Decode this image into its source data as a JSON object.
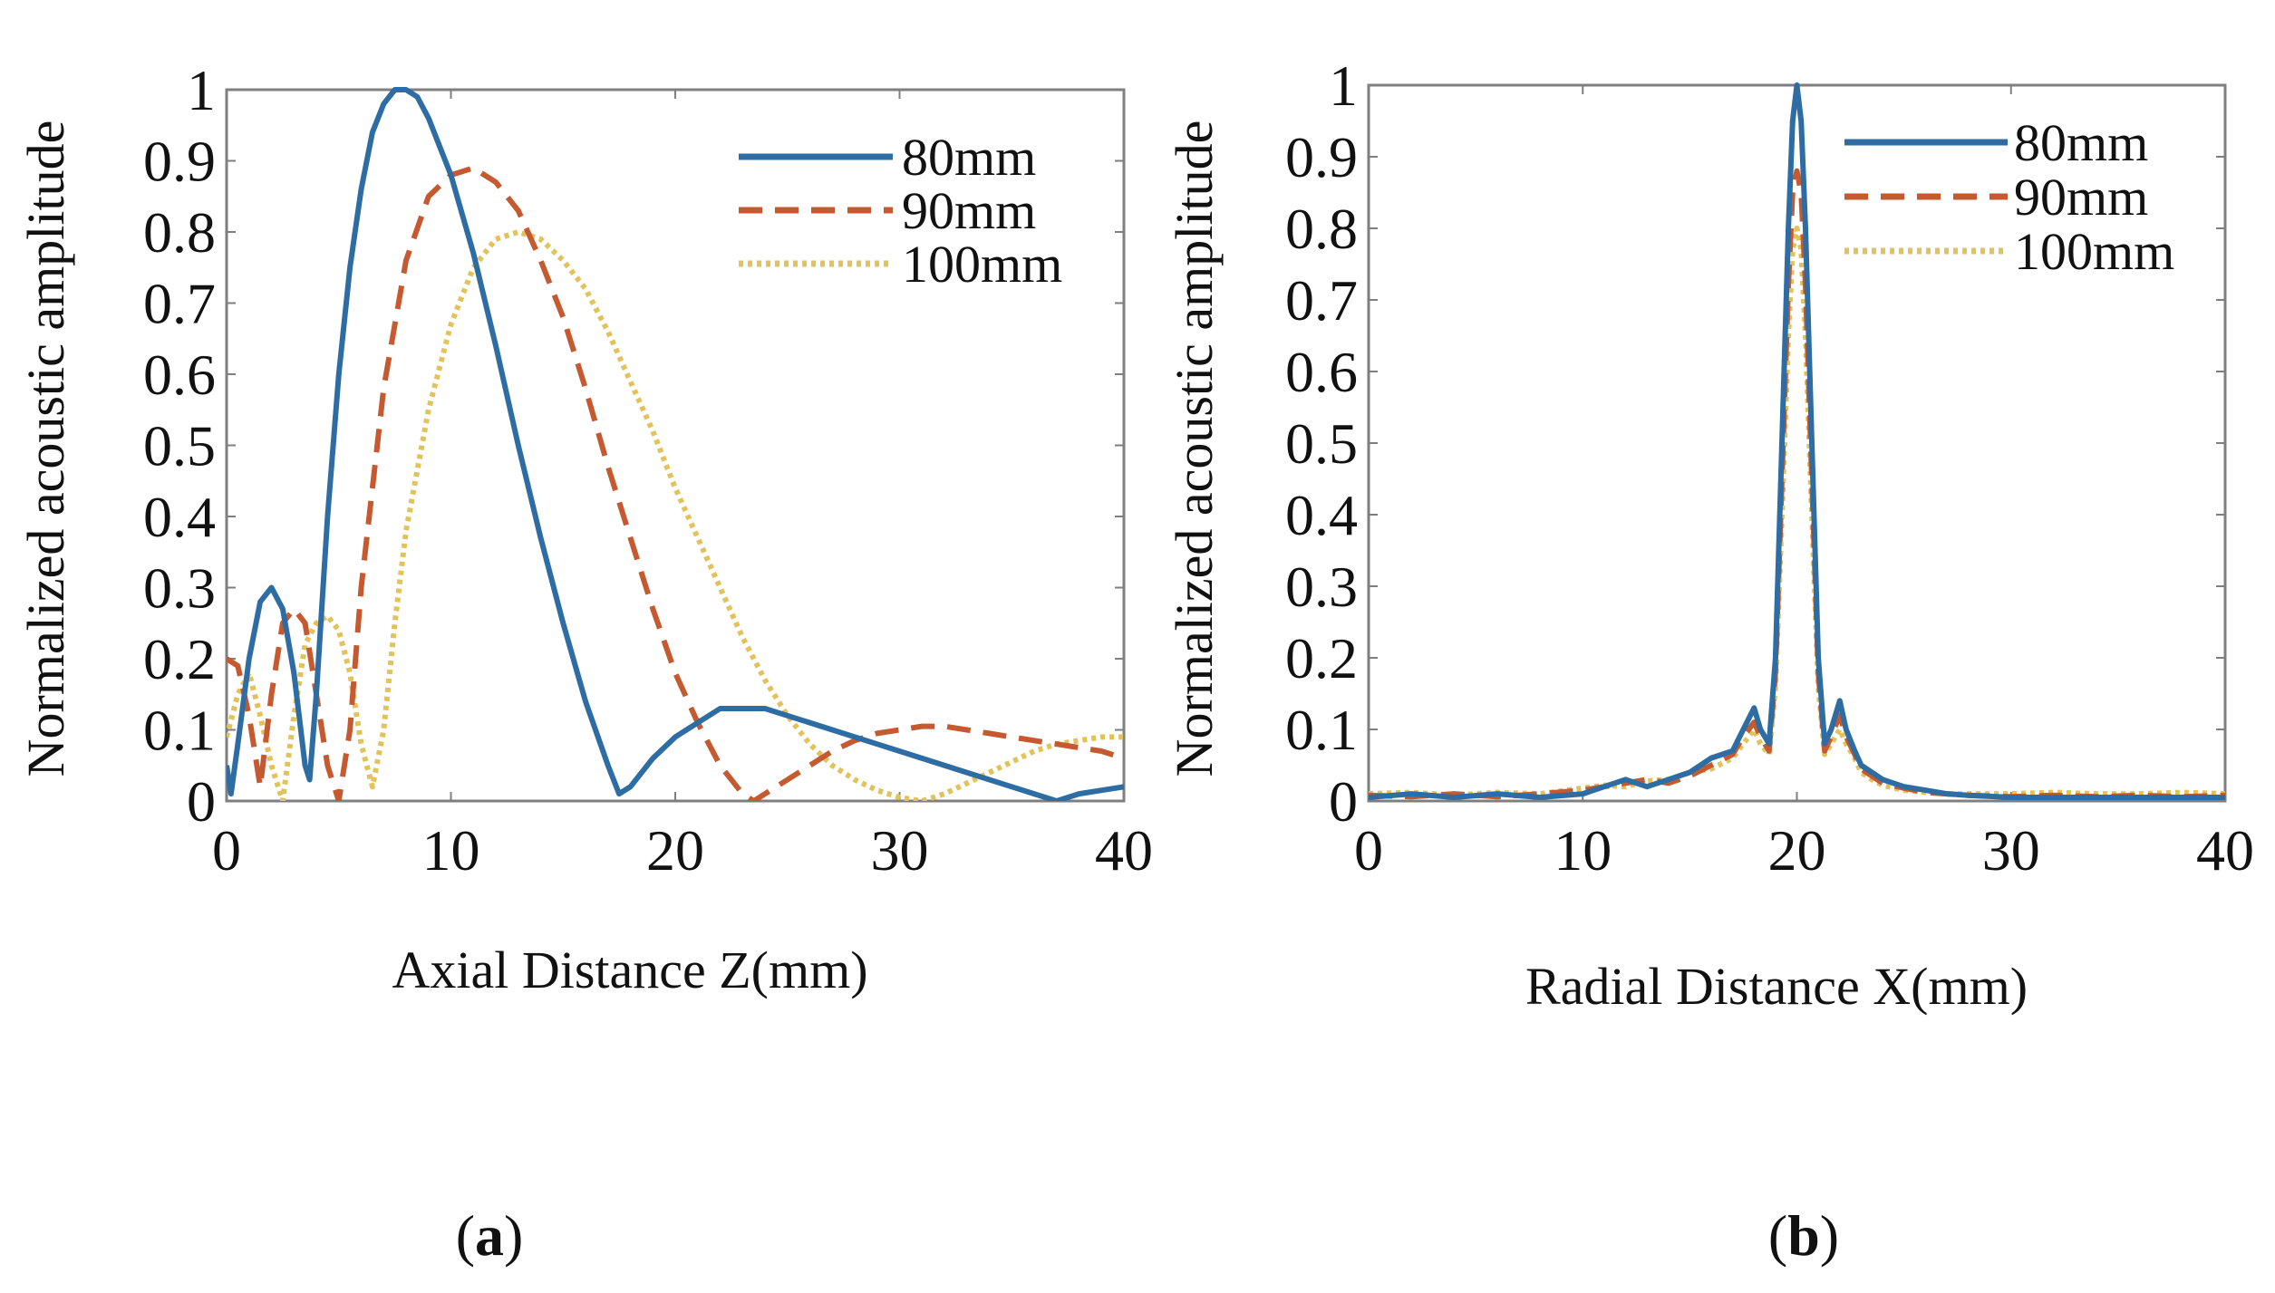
{
  "chart_data": [
    {
      "type": "line",
      "panel": "a",
      "caption": {
        "open": "(",
        "letter": "a",
        "close": ")"
      },
      "xlabel": "Axial Distance Z(mm)",
      "ylabel": "Normalized acoustic amplitude",
      "xlim": [
        0,
        40
      ],
      "ylim": [
        0,
        1
      ],
      "xticks": [
        0,
        10,
        20,
        30,
        40
      ],
      "xtick_labels": [
        "0",
        "10",
        "20",
        "30",
        "40"
      ],
      "yticks": [
        0,
        0.1,
        0.2,
        0.3,
        0.4,
        0.5,
        0.6,
        0.7,
        0.8,
        0.9,
        1
      ],
      "ytick_labels": [
        "0",
        "0.1",
        "0.2",
        "0.3",
        "0.4",
        "0.5",
        "0.6",
        "0.7",
        "0.8",
        "0.9",
        "1"
      ],
      "legend_position": "top-right",
      "series": [
        {
          "name": "80mm",
          "color": "#2e6da4",
          "style": "solid",
          "x": [
            0,
            0.2,
            0.5,
            1,
            1.5,
            2,
            2.5,
            3,
            3.5,
            3.7,
            4,
            4.5,
            5,
            5.5,
            6,
            6.5,
            7,
            7.5,
            8,
            8.5,
            9,
            10,
            11,
            12,
            13,
            14,
            15,
            16,
            17,
            17.5,
            18,
            19,
            20,
            21,
            22,
            23,
            24,
            25,
            27,
            29,
            31,
            33,
            35,
            36,
            37,
            38,
            39,
            40
          ],
          "y": [
            0.05,
            0.01,
            0.08,
            0.2,
            0.28,
            0.3,
            0.27,
            0.18,
            0.05,
            0.03,
            0.15,
            0.4,
            0.6,
            0.75,
            0.86,
            0.94,
            0.98,
            1.0,
            1.0,
            0.99,
            0.96,
            0.88,
            0.77,
            0.64,
            0.5,
            0.37,
            0.25,
            0.14,
            0.05,
            0.01,
            0.02,
            0.06,
            0.09,
            0.11,
            0.13,
            0.13,
            0.13,
            0.12,
            0.1,
            0.08,
            0.06,
            0.04,
            0.02,
            0.01,
            0.0,
            0.01,
            0.015,
            0.02
          ]
        },
        {
          "name": "90mm",
          "color": "#c55a30",
          "style": "dashed",
          "x": [
            0,
            0.5,
            1,
            1.5,
            2,
            2.5,
            3,
            3.5,
            4,
            4.5,
            5,
            5.5,
            6,
            7,
            8,
            9,
            10,
            11,
            12,
            13,
            14,
            15,
            16,
            17,
            18,
            19,
            20,
            21,
            22,
            23,
            23.5,
            24,
            25,
            26,
            27,
            28,
            29,
            30,
            31,
            32,
            33,
            34,
            35,
            36,
            37,
            38,
            39,
            40
          ],
          "y": [
            0.2,
            0.19,
            0.12,
            0.02,
            0.15,
            0.25,
            0.27,
            0.25,
            0.15,
            0.05,
            0.0,
            0.1,
            0.3,
            0.58,
            0.76,
            0.85,
            0.88,
            0.89,
            0.87,
            0.83,
            0.76,
            0.68,
            0.58,
            0.47,
            0.37,
            0.27,
            0.18,
            0.11,
            0.05,
            0.01,
            0.0,
            0.01,
            0.03,
            0.05,
            0.07,
            0.085,
            0.095,
            0.1,
            0.105,
            0.105,
            0.1,
            0.095,
            0.09,
            0.085,
            0.08,
            0.075,
            0.07,
            0.06
          ]
        },
        {
          "name": "100mm",
          "color": "#e2c25a",
          "style": "dotted",
          "x": [
            0,
            0.5,
            1,
            1.5,
            2,
            2.5,
            3,
            3.5,
            4,
            4.5,
            5,
            5.5,
            6,
            6.5,
            7,
            7.5,
            8,
            9,
            10,
            11,
            12,
            13,
            14,
            15,
            16,
            17,
            18,
            19,
            20,
            21,
            22,
            23,
            24,
            25,
            26,
            27,
            28,
            29,
            30,
            31,
            32,
            33,
            34,
            35,
            36,
            37,
            38,
            39,
            40
          ],
          "y": [
            0.09,
            0.15,
            0.18,
            0.12,
            0.05,
            0.0,
            0.12,
            0.22,
            0.25,
            0.26,
            0.24,
            0.18,
            0.08,
            0.02,
            0.1,
            0.25,
            0.38,
            0.55,
            0.67,
            0.75,
            0.79,
            0.8,
            0.79,
            0.76,
            0.72,
            0.66,
            0.59,
            0.52,
            0.44,
            0.37,
            0.3,
            0.23,
            0.17,
            0.12,
            0.08,
            0.05,
            0.03,
            0.015,
            0.005,
            0.0,
            0.01,
            0.025,
            0.04,
            0.055,
            0.07,
            0.08,
            0.085,
            0.09,
            0.09
          ]
        }
      ]
    },
    {
      "type": "line",
      "panel": "b",
      "caption": {
        "open": "(",
        "letter": "b",
        "close": ")"
      },
      "xlabel": "Radial Distance X(mm)",
      "ylabel": "Normalized acoustic amplitude",
      "xlim": [
        0,
        40
      ],
      "ylim": [
        0,
        1
      ],
      "xticks": [
        0,
        10,
        20,
        30,
        40
      ],
      "xtick_labels": [
        "0",
        "10",
        "20",
        "30",
        "40"
      ],
      "yticks": [
        0,
        0.1,
        0.2,
        0.3,
        0.4,
        0.5,
        0.6,
        0.7,
        0.8,
        0.9,
        1
      ],
      "ytick_labels": [
        "0",
        "0.1",
        "0.2",
        "0.3",
        "0.4",
        "0.5",
        "0.6",
        "0.7",
        "0.8",
        "0.9",
        "1"
      ],
      "legend_position": "top-right",
      "series": [
        {
          "name": "80mm",
          "color": "#2e6da4",
          "style": "solid",
          "x": [
            0,
            2,
            4,
            6,
            8,
            10,
            11,
            12,
            13,
            14,
            15,
            16,
            17,
            17.5,
            18,
            18.3,
            18.7,
            19,
            19.3,
            19.6,
            19.8,
            20,
            20.2,
            20.4,
            20.7,
            21,
            21.3,
            21.6,
            22,
            22.3,
            22.7,
            23,
            23.5,
            24,
            25,
            26,
            27,
            28,
            30,
            32,
            34,
            36,
            38,
            40
          ],
          "y": [
            0.005,
            0.01,
            0.005,
            0.01,
            0.005,
            0.01,
            0.02,
            0.03,
            0.02,
            0.03,
            0.04,
            0.06,
            0.07,
            0.1,
            0.13,
            0.1,
            0.08,
            0.2,
            0.5,
            0.8,
            0.95,
            1.0,
            0.95,
            0.8,
            0.5,
            0.2,
            0.08,
            0.1,
            0.14,
            0.1,
            0.07,
            0.05,
            0.04,
            0.03,
            0.02,
            0.015,
            0.01,
            0.008,
            0.005,
            0.005,
            0.005,
            0.005,
            0.005,
            0.005
          ]
        },
        {
          "name": "90mm",
          "color": "#c55a30",
          "style": "dashed",
          "x": [
            0,
            2,
            4,
            6,
            8,
            10,
            11,
            12,
            13,
            14,
            15,
            16,
            17,
            17.5,
            18,
            18.3,
            18.7,
            19,
            19.3,
            19.6,
            19.8,
            20,
            20.2,
            20.4,
            20.7,
            21,
            21.3,
            21.6,
            22,
            22.3,
            22.7,
            23,
            23.5,
            24,
            25,
            26,
            27,
            28,
            30,
            32,
            34,
            36,
            38,
            40
          ],
          "y": [
            0.008,
            0.006,
            0.01,
            0.006,
            0.01,
            0.015,
            0.02,
            0.025,
            0.03,
            0.025,
            0.035,
            0.05,
            0.065,
            0.09,
            0.11,
            0.09,
            0.07,
            0.18,
            0.45,
            0.72,
            0.85,
            0.88,
            0.85,
            0.72,
            0.45,
            0.18,
            0.07,
            0.09,
            0.12,
            0.09,
            0.065,
            0.045,
            0.035,
            0.025,
            0.018,
            0.012,
            0.01,
            0.008,
            0.006,
            0.008,
            0.006,
            0.008,
            0.006,
            0.008
          ]
        },
        {
          "name": "100mm",
          "color": "#e2c25a",
          "style": "dotted",
          "x": [
            0,
            2,
            4,
            6,
            8,
            10,
            11,
            12,
            13,
            14,
            15,
            16,
            17,
            17.5,
            18,
            18.3,
            18.7,
            19,
            19.3,
            19.6,
            19.8,
            20,
            20.2,
            20.4,
            20.7,
            21,
            21.3,
            21.6,
            22,
            22.3,
            22.7,
            23,
            23.5,
            24,
            25,
            26,
            27,
            28,
            30,
            32,
            34,
            36,
            38,
            40
          ],
          "y": [
            0.01,
            0.012,
            0.008,
            0.012,
            0.01,
            0.018,
            0.022,
            0.02,
            0.028,
            0.03,
            0.04,
            0.045,
            0.06,
            0.08,
            0.1,
            0.08,
            0.065,
            0.16,
            0.4,
            0.65,
            0.77,
            0.8,
            0.77,
            0.65,
            0.4,
            0.16,
            0.065,
            0.08,
            0.1,
            0.08,
            0.06,
            0.04,
            0.03,
            0.022,
            0.015,
            0.012,
            0.01,
            0.01,
            0.01,
            0.012,
            0.01,
            0.01,
            0.012,
            0.01
          ]
        }
      ]
    }
  ]
}
